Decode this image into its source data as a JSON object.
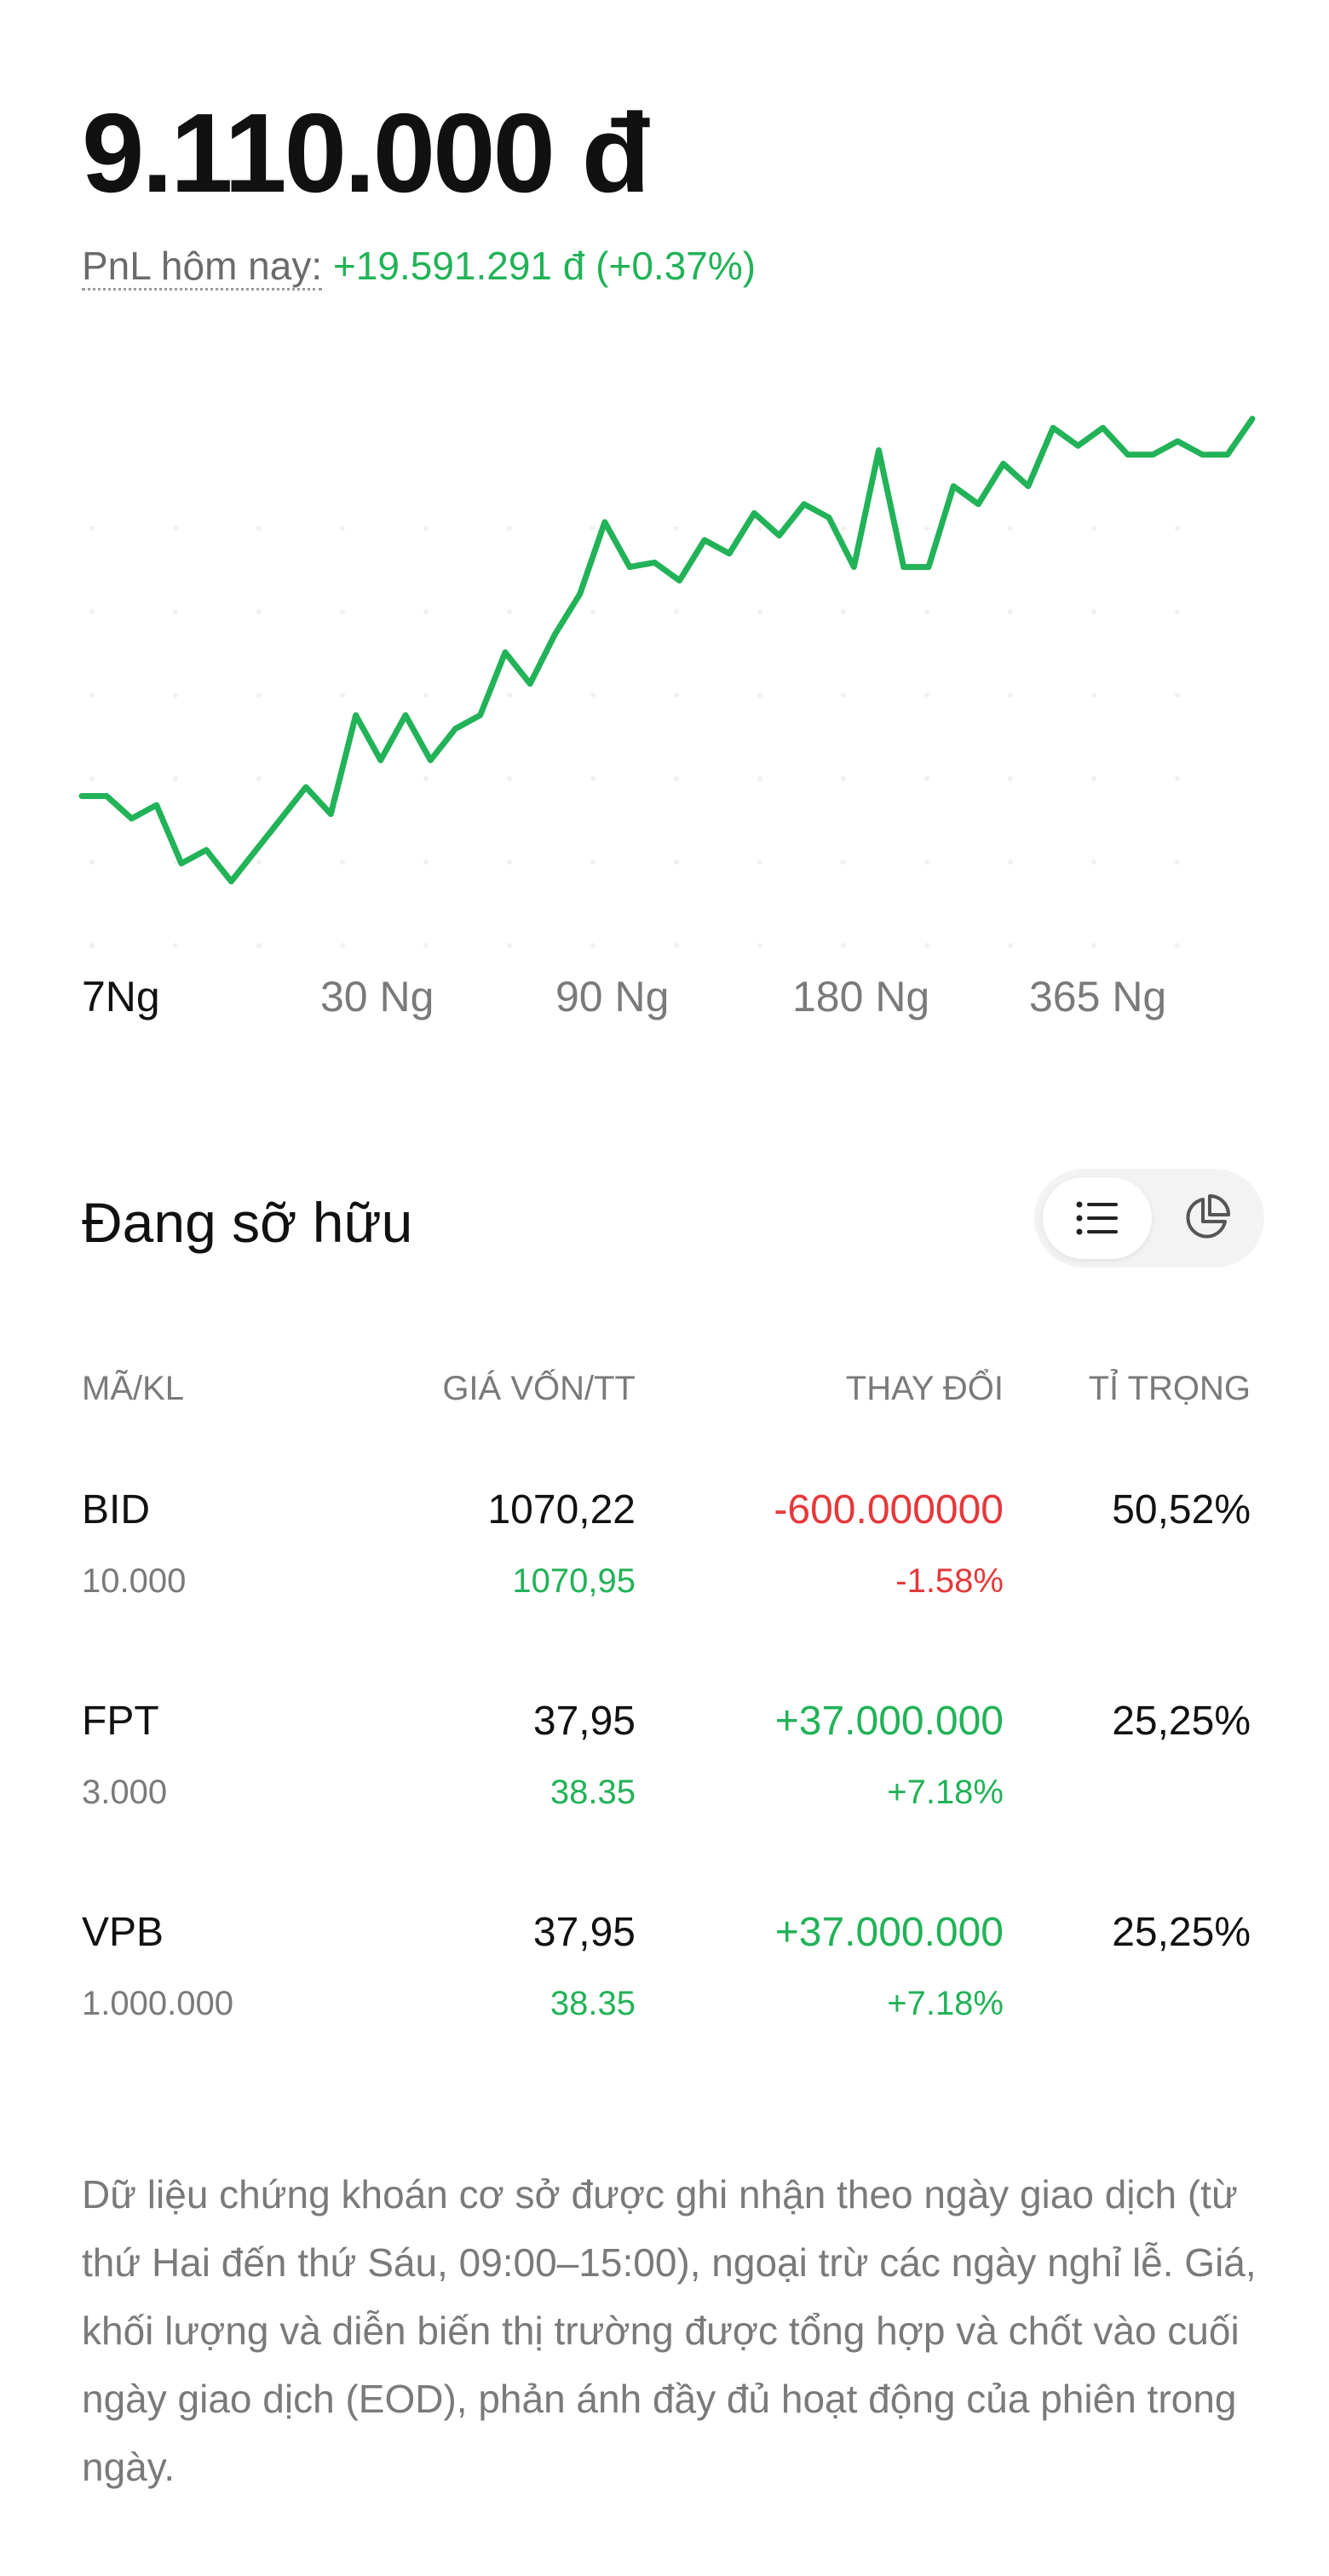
{
  "portfolio": {
    "balance": "9.110.000 đ",
    "pnl_label": "PnL hôm nay:",
    "pnl_value": "+19.591.291 đ (+0.37%)"
  },
  "chart_data": {
    "type": "line",
    "title": "",
    "xlabel": "",
    "ylabel": "",
    "grid": "dots",
    "color": "#22b258",
    "values": [
      0.2,
      0.2,
      0.15,
      0.18,
      0.05,
      0.08,
      0.01,
      0.08,
      0.15,
      0.22,
      0.16,
      0.38,
      0.28,
      0.38,
      0.28,
      0.35,
      0.38,
      0.52,
      0.45,
      0.56,
      0.65,
      0.81,
      0.71,
      0.72,
      0.68,
      0.77,
      0.74,
      0.83,
      0.78,
      0.85,
      0.82,
      0.71,
      0.97,
      0.71,
      0.71,
      0.89,
      0.85,
      0.94,
      0.89,
      1.02,
      0.98,
      1.02,
      0.96,
      0.96,
      0.99,
      0.96,
      0.96,
      1.04
    ],
    "ylim": [
      0,
      1.1
    ]
  },
  "ranges": [
    {
      "label": "7Ng",
      "active": true
    },
    {
      "label": "30 Ng",
      "active": false
    },
    {
      "label": "90 Ng",
      "active": false
    },
    {
      "label": "180 Ng",
      "active": false
    },
    {
      "label": "365 Ng",
      "active": false
    }
  ],
  "holdings": {
    "title": "Đang sỡ hữu",
    "view_toggle": {
      "list_icon": "list-icon",
      "pie_icon": "pie-chart-icon",
      "active": "list"
    },
    "columns": {
      "symbol": "MÃ/KL",
      "price": "GIÁ VỐN/TT",
      "change": "THAY ĐỔI",
      "weight": "TỈ TRỌNG"
    },
    "rows": [
      {
        "symbol": "BID",
        "quantity": "10.000",
        "cost": "1070,22",
        "market": "1070,95",
        "change": "-600.000000",
        "change_pct": "-1.58%",
        "weight": "50,52%",
        "direction": "down"
      },
      {
        "symbol": "FPT",
        "quantity": "3.000",
        "cost": "37,95",
        "market": "38.35",
        "change": "+37.000.000",
        "change_pct": "+7.18%",
        "weight": "25,25%",
        "direction": "up"
      },
      {
        "symbol": "VPB",
        "quantity": "1.000.000",
        "cost": "37,95",
        "market": "38.35",
        "change": "+37.000.000",
        "change_pct": "+7.18%",
        "weight": "25,25%",
        "direction": "up"
      }
    ]
  },
  "disclaimer": "Dữ liệu chứng khoán cơ sở được ghi nhận theo ngày giao dịch (từ thứ Hai đến thứ Sáu, 09:00–15:00), ngoại trừ các ngày nghỉ lễ. Giá, khối lượng và diễn biến thị trường được tổng hợp và chốt vào cuối ngày giao dịch (EOD), phản ánh đầy đủ hoạt động của phiên trong ngày."
}
